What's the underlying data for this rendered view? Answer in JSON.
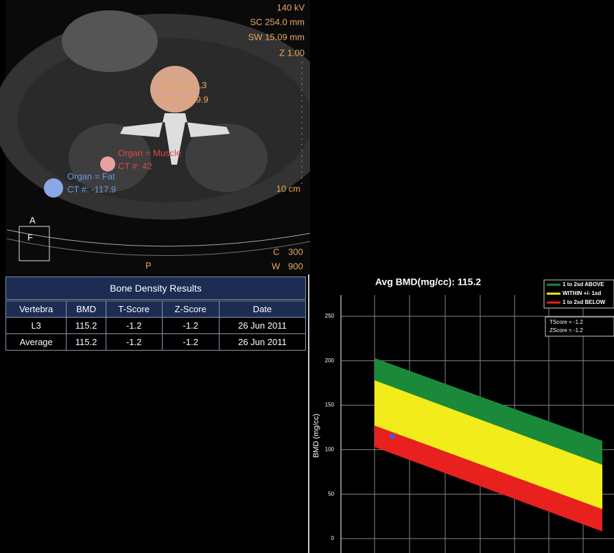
{
  "ct_image": {
    "info": [
      "140 kV",
      "SC 254.0 mm",
      "SW 15.09 mm",
      "Z 1.00"
    ],
    "rois": [
      {
        "organ": "Organ = L3",
        "ct": "CT #: 169.9"
      },
      {
        "organ": "Organ = Muscle",
        "ct": "CT #: 42"
      },
      {
        "organ": "Organ = Fat",
        "ct": "CT #: -117.9"
      }
    ],
    "scale": "10 cm",
    "orientation": {
      "a": "A",
      "f": "F",
      "p": "P"
    },
    "window": {
      "c": "C",
      "c_value": "300",
      "w": "W",
      "w_value": "900"
    }
  },
  "table": {
    "title": "Bone Density Results",
    "columns": [
      "Vertebra",
      "BMD",
      "T-Score",
      "Z-Score",
      "Date"
    ],
    "rows": [
      [
        "L3",
        "115.2",
        "-1.2",
        "-1.2",
        "26 Jun 2011"
      ],
      [
        "Average",
        "115.2",
        "-1.2",
        "-1.2",
        "26 Jun 2011"
      ]
    ]
  },
  "chart_data": {
    "type": "band",
    "title": "Avg BMD(mg/cc): 115.2",
    "y_label": "BMD (mg/cc)",
    "ylim": [
      0,
      250
    ],
    "yticks": [
      0,
      50,
      100,
      150,
      200,
      250
    ],
    "grid": true,
    "series": [
      {
        "name": "1 to 2sd ABOVE",
        "color": "#1a8a3a",
        "lower": [
          178,
          83
        ],
        "upper": [
          203,
          110
        ]
      },
      {
        "name": "WITHIN +/- 1sd",
        "color": "#f2ec1a",
        "lower": [
          127,
          33
        ],
        "upper": [
          178,
          83
        ]
      },
      {
        "name": "1 to 2sd BELOW",
        "color": "#e8201e",
        "lower": [
          103,
          8
        ],
        "upper": [
          127,
          33
        ]
      }
    ],
    "point": {
      "value": 115.2,
      "color": "#4a5ad0"
    },
    "scores": [
      "TScore = -1.2",
      "ZScore = -1.2"
    ],
    "legend": "upper right"
  }
}
